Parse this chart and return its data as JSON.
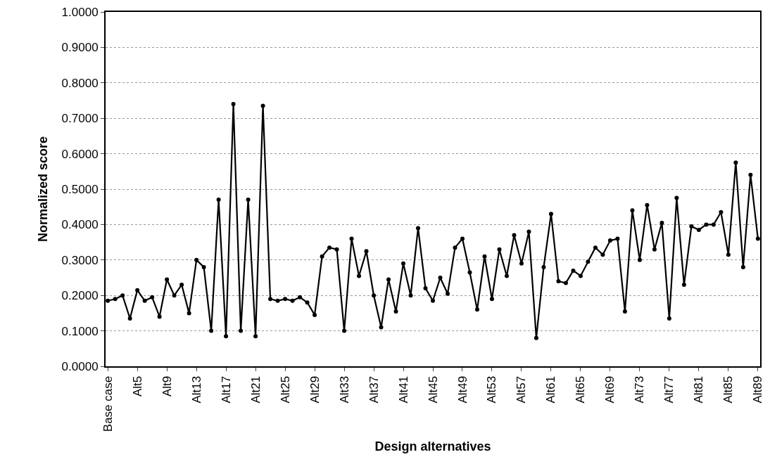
{
  "chart_data": {
    "type": "line",
    "xlabel": "Design alternatives",
    "ylabel": "Normalized score",
    "categories": [
      "Base case",
      null,
      null,
      null,
      "Alt5",
      null,
      null,
      null,
      "Alt9",
      null,
      null,
      null,
      "Alt13",
      null,
      null,
      null,
      "Alt17",
      null,
      null,
      null,
      "Alt21",
      null,
      null,
      null,
      "Alt25",
      null,
      null,
      null,
      "Alt29",
      null,
      null,
      null,
      "Alt33",
      null,
      null,
      null,
      "Alt37",
      null,
      null,
      null,
      "Alt41",
      null,
      null,
      null,
      "Alt45",
      null,
      null,
      null,
      "Alt49",
      null,
      null,
      null,
      "Alt53",
      null,
      null,
      null,
      "Alt57",
      null,
      null,
      null,
      "Alt61",
      null,
      null,
      null,
      "Alt65",
      null,
      null,
      null,
      "Alt69",
      null,
      null,
      null,
      "Alt73",
      null,
      null,
      null,
      "Alt77",
      null,
      null,
      null,
      "Alt81",
      null,
      null,
      null,
      "Alt85",
      null,
      null,
      null,
      "Alt89"
    ],
    "series": [
      {
        "color": "#000000",
        "values": [
          0.185,
          0.19,
          0.2,
          0.135,
          0.215,
          0.185,
          0.195,
          0.14,
          0.245,
          0.2,
          0.23,
          0.15,
          0.3,
          0.28,
          0.1,
          0.47,
          0.085,
          0.74,
          0.1,
          0.47,
          0.085,
          0.735,
          0.19,
          0.185,
          0.19,
          0.185,
          0.195,
          0.18,
          0.145,
          0.31,
          0.335,
          0.33,
          0.1,
          0.36,
          0.255,
          0.325,
          0.2,
          0.11,
          0.245,
          0.155,
          0.29,
          0.2,
          0.39,
          0.22,
          0.185,
          0.25,
          0.205,
          0.335,
          0.36,
          0.265,
          0.16,
          0.31,
          0.19,
          0.33,
          0.255,
          0.37,
          0.29,
          0.38,
          0.08,
          0.28,
          0.43,
          0.24,
          0.235,
          0.27,
          0.255,
          0.295,
          0.335,
          0.315,
          0.355,
          0.36,
          0.155,
          0.44,
          0.3,
          0.455,
          0.33,
          0.405,
          0.135,
          0.475,
          0.23,
          0.395,
          0.385,
          0.4,
          0.4,
          0.435,
          0.315,
          0.575,
          0.28,
          0.54,
          0.36
        ]
      }
    ],
    "ylim": [
      0,
      1
    ],
    "yticks": [
      {
        "value": 0,
        "label": "0.0000"
      },
      {
        "value": 0.1,
        "label": "0.1000"
      },
      {
        "value": 0.2,
        "label": "0.2000"
      },
      {
        "value": 0.3,
        "label": "0.3000"
      },
      {
        "value": 0.4,
        "label": "0.4000"
      },
      {
        "value": 0.5,
        "label": "0.5000"
      },
      {
        "value": 0.6,
        "label": "0.6000"
      },
      {
        "value": 0.7,
        "label": "0.7000"
      },
      {
        "value": 0.8,
        "label": "0.8000"
      },
      {
        "value": 0.9,
        "label": "0.9000"
      },
      {
        "value": 1,
        "label": "1.0000"
      }
    ],
    "grid": "y",
    "marker": "circle",
    "line_style": "solid"
  }
}
